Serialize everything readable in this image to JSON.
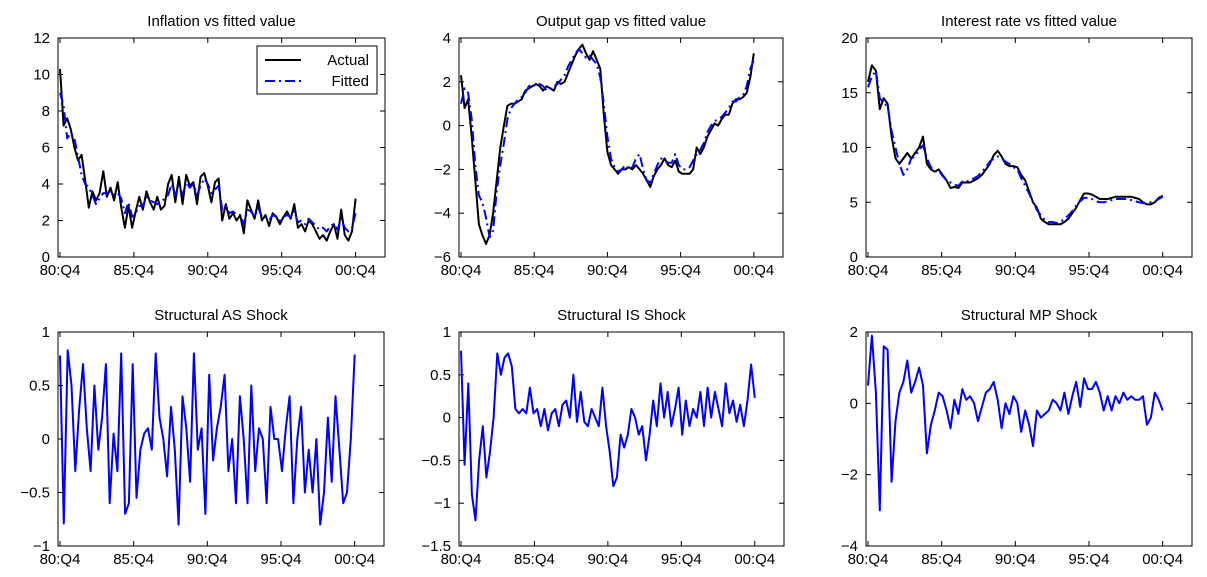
{
  "figure": {
    "rows": 2,
    "cols": 3
  },
  "colors": {
    "actual": "#000000",
    "fitted": "#0000ff",
    "shock": "#0000ff",
    "axis": "#000000"
  },
  "chart_data": [
    {
      "type": "line",
      "title": "Inflation vs fitted value",
      "x_ticks": [
        "80:Q4",
        "85:Q4",
        "90:Q4",
        "95:Q4",
        "00:Q4"
      ],
      "ylim": [
        0,
        12
      ],
      "y_ticks": [
        "0",
        "2",
        "4",
        "6",
        "8",
        "10",
        "12"
      ],
      "legend": {
        "entries": [
          "Actual",
          "Fitted"
        ],
        "placement": "top-right"
      },
      "series": [
        {
          "name": "Actual",
          "style": "solid",
          "color": "#000000",
          "values": [
            10.3,
            7.2,
            7.6,
            7.0,
            6.0,
            5.3,
            5.6,
            4.2,
            2.7,
            3.6,
            3.1,
            3.5,
            4.7,
            3.3,
            3.8,
            3.1,
            4.1,
            2.7,
            1.6,
            2.8,
            1.6,
            2.5,
            3.3,
            2.6,
            3.6,
            3.0,
            2.6,
            3.3,
            2.6,
            2.8,
            4.0,
            4.5,
            3.0,
            4.4,
            2.9,
            4.5,
            3.9,
            4.1,
            2.9,
            4.4,
            4.6,
            3.9,
            3.0,
            4.1,
            4.3,
            2.0,
            2.9,
            2.1,
            2.4,
            2.0,
            2.3,
            1.3,
            3.1,
            2.6,
            2.1,
            3.1,
            2.0,
            2.3,
            1.7,
            2.4,
            2.2,
            1.8,
            2.2,
            2.5,
            2.1,
            2.9,
            1.6,
            1.8,
            1.4,
            2.0,
            1.8,
            1.4,
            1.0,
            1.2,
            0.9,
            1.4,
            1.8,
            1.0,
            2.6,
            1.2,
            0.9,
            1.4,
            3.2
          ]
        },
        {
          "name": "Fitted",
          "style": "dashdot",
          "color": "#0000ff",
          "values": [
            9.0,
            8.3,
            6.5,
            6.8,
            6.5,
            5.5,
            4.5,
            4.0,
            3.8,
            3.4,
            2.9,
            3.2,
            3.5,
            3.5,
            3.6,
            3.4,
            3.5,
            3.2,
            2.4,
            3.0,
            2.2,
            2.4,
            2.8,
            2.8,
            3.3,
            3.1,
            3.0,
            2.9,
            3.0,
            3.2,
            3.4,
            4.0,
            3.4,
            3.9,
            3.4,
            4.1,
            3.8,
            4.0,
            3.4,
            3.9,
            4.3,
            4.0,
            3.5,
            3.7,
            3.9,
            2.6,
            2.8,
            2.4,
            2.5,
            2.3,
            2.3,
            1.8,
            2.6,
            2.5,
            2.2,
            2.7,
            2.2,
            2.2,
            2.0,
            2.3,
            2.2,
            2.0,
            2.2,
            2.3,
            2.2,
            2.5,
            1.9,
            2.0,
            1.8,
            2.1,
            1.9,
            1.7,
            1.5,
            1.6,
            1.4,
            1.7,
            1.8,
            1.5,
            2.1,
            1.6,
            1.4,
            1.6,
            2.4
          ]
        }
      ]
    },
    {
      "type": "line",
      "title": "Output gap vs fitted value",
      "x_ticks": [
        "80:Q4",
        "85:Q4",
        "90:Q4",
        "95:Q4",
        "00:Q4"
      ],
      "ylim": [
        -6,
        4
      ],
      "y_ticks": [
        "−6",
        "−4",
        "−2",
        "0",
        "2",
        "4"
      ],
      "series": [
        {
          "name": "Actual",
          "style": "solid",
          "color": "#000000",
          "values": [
            2.3,
            0.8,
            1.2,
            -0.5,
            -2.5,
            -4.5,
            -5.0,
            -5.4,
            -5.0,
            -4.0,
            -2.5,
            -1.0,
            0.0,
            0.9,
            1.0,
            1.0,
            1.1,
            1.2,
            1.6,
            1.7,
            1.8,
            1.9,
            1.8,
            1.6,
            1.8,
            1.7,
            1.6,
            2.0,
            1.9,
            2.0,
            2.4,
            2.8,
            3.2,
            3.5,
            3.7,
            3.3,
            3.0,
            3.4,
            3.0,
            2.6,
            0.5,
            -1.2,
            -1.8,
            -2.0,
            -2.2,
            -2.0,
            -2.0,
            -1.9,
            -2.0,
            -1.8,
            -2.0,
            -2.2,
            -2.5,
            -2.8,
            -2.3,
            -2.0,
            -1.8,
            -1.5,
            -1.8,
            -1.9,
            -1.6,
            -2.1,
            -2.2,
            -2.2,
            -2.2,
            -2.0,
            -1.0,
            -1.3,
            -1.0,
            -0.5,
            -0.2,
            0.1,
            0.0,
            0.3,
            0.5,
            0.5,
            1.0,
            1.2,
            1.2,
            1.3,
            1.5,
            2.2,
            3.3
          ]
        },
        {
          "name": "Fitted",
          "style": "dashdot",
          "color": "#0000ff",
          "values": [
            1.0,
            1.7,
            1.5,
            0.3,
            -1.8,
            -3.2,
            -3.5,
            -4.2,
            -5.1,
            -4.8,
            -3.0,
            -1.8,
            -0.8,
            0.3,
            0.8,
            1.0,
            1.2,
            1.3,
            1.5,
            1.8,
            1.9,
            1.8,
            1.9,
            1.8,
            1.6,
            1.7,
            1.8,
            1.9,
            2.1,
            2.3,
            2.7,
            3.0,
            3.3,
            3.5,
            3.3,
            3.1,
            3.2,
            3.0,
            2.8,
            2.2,
            1.0,
            -0.5,
            -1.5,
            -1.9,
            -2.1,
            -2.0,
            -1.8,
            -2.0,
            -1.9,
            -1.5,
            -1.3,
            -2.0,
            -2.5,
            -2.6,
            -2.2,
            -1.8,
            -1.5,
            -1.6,
            -1.7,
            -1.7,
            -1.3,
            -1.8,
            -2.0,
            -2.0,
            -1.9,
            -1.6,
            -1.3,
            -1.1,
            -0.8,
            -0.3,
            0.0,
            0.2,
            0.3,
            0.4,
            0.6,
            0.8,
            1.1,
            1.1,
            1.3,
            1.4,
            1.8,
            2.6,
            3.0
          ]
        }
      ]
    },
    {
      "type": "line",
      "title": "Interest rate vs fitted value",
      "x_ticks": [
        "80:Q4",
        "85:Q4",
        "90:Q4",
        "95:Q4",
        "00:Q4"
      ],
      "ylim": [
        0,
        20
      ],
      "y_ticks": [
        "0",
        "5",
        "10",
        "15",
        "20"
      ],
      "series": [
        {
          "name": "Actual",
          "style": "solid",
          "color": "#000000",
          "values": [
            16.0,
            17.5,
            17.0,
            13.5,
            14.5,
            14.0,
            11.0,
            9.0,
            8.5,
            9.0,
            9.5,
            9.0,
            9.5,
            10.0,
            11.0,
            8.5,
            8.0,
            7.8,
            8.0,
            7.5,
            7.0,
            6.3,
            6.4,
            6.3,
            6.8,
            6.8,
            6.8,
            7.0,
            7.2,
            7.5,
            8.0,
            8.5,
            9.3,
            9.7,
            9.2,
            8.5,
            8.3,
            8.3,
            8.2,
            7.5,
            7.0,
            6.0,
            5.0,
            4.5,
            3.5,
            3.2,
            3.0,
            3.0,
            3.0,
            3.0,
            3.2,
            3.5,
            4.0,
            4.5,
            5.2,
            5.8,
            5.8,
            5.7,
            5.5,
            5.3,
            5.3,
            5.3,
            5.4,
            5.5,
            5.5,
            5.5,
            5.5,
            5.5,
            5.4,
            5.3,
            5.0,
            4.8,
            4.8,
            5.0,
            5.4,
            5.6
          ]
        },
        {
          "name": "Fitted",
          "style": "dashdot",
          "color": "#0000ff",
          "values": [
            15.5,
            16.5,
            17.0,
            14.5,
            14.0,
            13.8,
            11.5,
            10.0,
            8.5,
            7.5,
            8.0,
            9.0,
            9.2,
            9.8,
            10.2,
            9.0,
            8.2,
            7.8,
            7.9,
            7.4,
            7.0,
            6.8,
            6.6,
            6.5,
            6.9,
            6.9,
            7.0,
            7.2,
            7.4,
            7.8,
            8.2,
            8.7,
            9.0,
            9.2,
            9.0,
            8.7,
            8.5,
            8.2,
            8.0,
            7.2,
            6.5,
            5.8,
            5.0,
            4.3,
            3.8,
            3.4,
            3.2,
            3.2,
            3.1,
            3.2,
            3.5,
            3.8,
            4.2,
            4.7,
            5.1,
            5.4,
            5.4,
            5.3,
            5.1,
            5.0,
            5.0,
            5.1,
            5.2,
            5.3,
            5.3,
            5.3,
            5.3,
            5.2,
            5.1,
            5.0,
            4.9,
            5.0,
            5.0,
            5.1,
            5.3,
            5.5
          ]
        }
      ]
    },
    {
      "type": "line",
      "title": "Structural AS Shock",
      "x_ticks": [
        "80:Q4",
        "85:Q4",
        "90:Q4",
        "95:Q4",
        "00:Q4"
      ],
      "ylim": [
        -1,
        1
      ],
      "y_ticks": [
        "−1",
        "−0.5",
        "0",
        "0.5",
        "1"
      ],
      "series": [
        {
          "name": "",
          "style": "solid",
          "color": "#0000ff",
          "values": [
            0.78,
            -0.79,
            0.83,
            0.5,
            -0.3,
            0.27,
            0.7,
            0.1,
            -0.3,
            0.5,
            -0.1,
            0.2,
            0.7,
            -0.6,
            0.05,
            -0.3,
            0.8,
            -0.7,
            -0.6,
            0.7,
            -0.55,
            -0.1,
            0.05,
            0.1,
            -0.1,
            0.8,
            0.2,
            0.0,
            -0.35,
            0.3,
            -0.1,
            -0.8,
            0.4,
            0.1,
            -0.4,
            0.8,
            -0.1,
            0.1,
            -0.7,
            0.6,
            -0.2,
            0.1,
            0.3,
            0.6,
            -0.3,
            0.0,
            -0.6,
            0.4,
            0.0,
            -0.6,
            0.5,
            -0.3,
            0.1,
            0.0,
            -0.6,
            0.3,
            0.0,
            0.0,
            -0.3,
            0.1,
            0.4,
            -0.6,
            0.0,
            0.3,
            -0.5,
            -0.1,
            -0.5,
            0.0,
            -0.8,
            -0.5,
            0.2,
            -0.4,
            0.4,
            -0.1,
            -0.6,
            -0.5,
            0.0,
            0.79
          ]
        }
      ]
    },
    {
      "type": "line",
      "title": "Structural IS Shock",
      "x_ticks": [
        "80:Q4",
        "85:Q4",
        "90:Q4",
        "95:Q4",
        "00:Q4"
      ],
      "ylim": [
        -1.5,
        1
      ],
      "y_ticks": [
        "−1.5",
        "−1",
        "−0.5",
        "0",
        "0.5",
        "1"
      ],
      "series": [
        {
          "name": "",
          "style": "solid",
          "color": "#0000ff",
          "values": [
            0.78,
            -0.55,
            0.4,
            -0.9,
            -1.2,
            -0.5,
            -0.1,
            -0.7,
            -0.4,
            0.0,
            0.75,
            0.5,
            0.7,
            0.75,
            0.6,
            0.1,
            0.05,
            0.1,
            0.05,
            0.35,
            0.05,
            0.1,
            -0.1,
            0.1,
            -0.15,
            0.05,
            0.1,
            -0.1,
            0.15,
            0.2,
            0.0,
            0.5,
            -0.05,
            0.3,
            -0.05,
            -0.1,
            0.1,
            0.0,
            -0.1,
            0.35,
            -0.1,
            -0.4,
            -0.8,
            -0.7,
            -0.2,
            -0.35,
            -0.2,
            0.1,
            0.0,
            -0.2,
            -0.1,
            -0.5,
            -0.2,
            0.2,
            -0.1,
            0.4,
            0.0,
            0.3,
            -0.1,
            0.1,
            0.35,
            -0.2,
            0.2,
            -0.1,
            0.1,
            0.0,
            0.3,
            -0.1,
            0.35,
            0.0,
            0.3,
            0.1,
            -0.1,
            0.4,
            0.05,
            0.2,
            -0.05,
            0.15,
            -0.1,
            0.2,
            0.62,
            0.23
          ]
        }
      ]
    },
    {
      "type": "line",
      "title": "Structural MP Shock",
      "x_ticks": [
        "80:Q4",
        "85:Q4",
        "90:Q4",
        "95:Q4",
        "00:Q4"
      ],
      "ylim": [
        -4,
        2
      ],
      "y_ticks": [
        "−4",
        "−2",
        "0",
        "2"
      ],
      "series": [
        {
          "name": "",
          "style": "solid",
          "color": "#0000ff",
          "values": [
            0.5,
            1.9,
            0.3,
            -3.0,
            1.6,
            1.5,
            -2.2,
            -0.5,
            0.3,
            0.6,
            1.2,
            0.3,
            0.6,
            1.0,
            0.5,
            -1.4,
            -0.6,
            -0.2,
            0.3,
            0.2,
            -0.2,
            -0.7,
            0.1,
            -0.3,
            0.4,
            0.1,
            0.2,
            0.0,
            -0.5,
            -0.1,
            0.3,
            0.4,
            0.6,
            0.1,
            -0.7,
            0.0,
            -0.3,
            0.2,
            0.0,
            -0.8,
            -0.2,
            -0.6,
            -1.2,
            -0.2,
            -0.4,
            -0.3,
            -0.2,
            0.1,
            0.0,
            -0.2,
            0.3,
            -0.3,
            0.2,
            0.6,
            -0.1,
            0.7,
            0.4,
            0.4,
            0.6,
            0.3,
            -0.2,
            0.2,
            -0.2,
            0.2,
            0.0,
            0.3,
            0.1,
            0.2,
            0.1,
            0.1,
            0.2,
            -0.6,
            -0.4,
            0.3,
            0.1,
            -0.2
          ]
        }
      ]
    }
  ]
}
